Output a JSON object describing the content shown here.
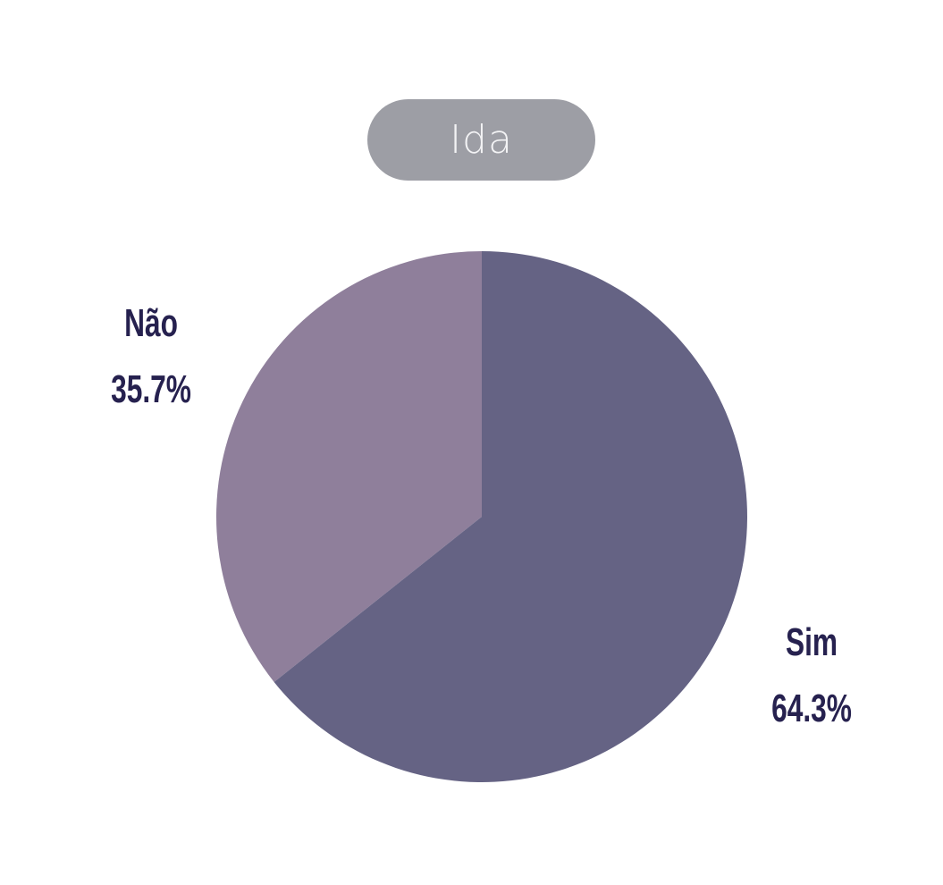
{
  "chart_data": {
    "type": "pie",
    "title": "Ida",
    "slices": [
      {
        "label": "Não",
        "value": 35.7,
        "display": "35.7%",
        "color": "#8f7f9b"
      },
      {
        "label": "Sim",
        "value": 64.3,
        "display": "64.3%",
        "color": "#656384"
      }
    ]
  },
  "colors": {
    "title_pill": "#9d9ea5",
    "title_text": "#f3f3f5",
    "label_text": "#26214f"
  }
}
